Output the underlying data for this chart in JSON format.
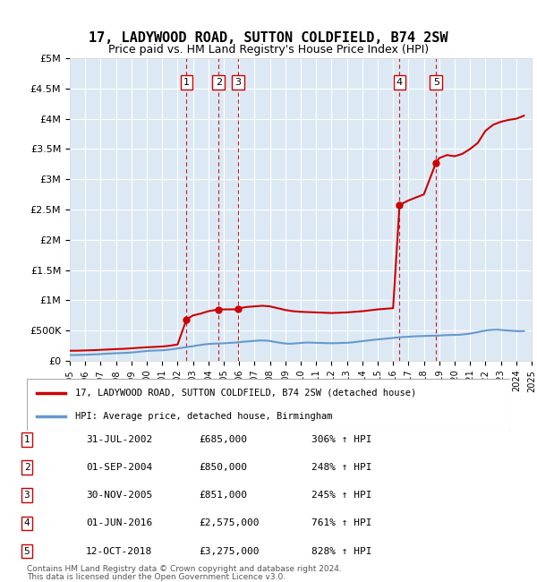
{
  "title": "17, LADYWOOD ROAD, SUTTON COLDFIELD, B74 2SW",
  "subtitle": "Price paid vs. HM Land Registry's House Price Index (HPI)",
  "hpi_line_color": "#6699cc",
  "price_line_color": "#cc0000",
  "background_color": "#dce9f5",
  "plot_bg_color": "#dce9f5",
  "sales": [
    {
      "label": "1",
      "date": 2002.58,
      "price": 685000,
      "date_str": "31-JUL-2002",
      "pct": "306%"
    },
    {
      "label": "2",
      "date": 2004.67,
      "price": 850000,
      "date_str": "01-SEP-2004",
      "pct": "248%"
    },
    {
      "label": "3",
      "date": 2005.92,
      "price": 851000,
      "date_str": "30-NOV-2005",
      "pct": "245%"
    },
    {
      "label": "4",
      "date": 2016.42,
      "price": 2575000,
      "date_str": "01-JUN-2016",
      "pct": "761%"
    },
    {
      "label": "5",
      "date": 2018.79,
      "price": 3275000,
      "date_str": "12-OCT-2018",
      "pct": "828%"
    }
  ],
  "hpi_data_x": [
    1995,
    1995.25,
    1995.5,
    1995.75,
    1996,
    1996.25,
    1996.5,
    1996.75,
    1997,
    1997.25,
    1997.5,
    1997.75,
    1998,
    1998.25,
    1998.5,
    1998.75,
    1999,
    1999.25,
    1999.5,
    1999.75,
    2000,
    2000.25,
    2000.5,
    2000.75,
    2001,
    2001.25,
    2001.5,
    2001.75,
    2002,
    2002.25,
    2002.5,
    2002.75,
    2003,
    2003.25,
    2003.5,
    2003.75,
    2004,
    2004.25,
    2004.5,
    2004.75,
    2005,
    2005.25,
    2005.5,
    2005.75,
    2006,
    2006.25,
    2006.5,
    2006.75,
    2007,
    2007.25,
    2007.5,
    2007.75,
    2008,
    2008.25,
    2008.5,
    2008.75,
    2009,
    2009.25,
    2009.5,
    2009.75,
    2010,
    2010.25,
    2010.5,
    2010.75,
    2011,
    2011.25,
    2011.5,
    2011.75,
    2012,
    2012.25,
    2012.5,
    2012.75,
    2013,
    2013.25,
    2013.5,
    2013.75,
    2014,
    2014.25,
    2014.5,
    2014.75,
    2015,
    2015.25,
    2015.5,
    2015.75,
    2016,
    2016.25,
    2016.5,
    2016.75,
    2017,
    2017.25,
    2017.5,
    2017.75,
    2018,
    2018.25,
    2018.5,
    2018.75,
    2019,
    2019.25,
    2019.5,
    2019.75,
    2020,
    2020.25,
    2020.5,
    2020.75,
    2021,
    2021.25,
    2021.5,
    2021.75,
    2022,
    2022.25,
    2022.5,
    2022.75,
    2023,
    2023.25,
    2023.5,
    2023.75,
    2024,
    2024.25,
    2024.5
  ],
  "hpi_data_y": [
    95000,
    96000,
    97000,
    98000,
    100000,
    103000,
    106000,
    108000,
    112000,
    116000,
    120000,
    123000,
    126000,
    128000,
    131000,
    133000,
    138000,
    143000,
    150000,
    157000,
    163000,
    167000,
    170000,
    172000,
    175000,
    180000,
    187000,
    196000,
    205000,
    215000,
    224000,
    233000,
    242000,
    253000,
    263000,
    272000,
    278000,
    282000,
    285000,
    287000,
    290000,
    294000,
    298000,
    302000,
    308000,
    315000,
    320000,
    325000,
    330000,
    335000,
    337000,
    334000,
    328000,
    316000,
    305000,
    295000,
    287000,
    283000,
    285000,
    290000,
    296000,
    300000,
    302000,
    300000,
    298000,
    296000,
    294000,
    292000,
    291000,
    292000,
    294000,
    296000,
    298000,
    303000,
    310000,
    318000,
    326000,
    333000,
    340000,
    347000,
    354000,
    360000,
    366000,
    372000,
    378000,
    385000,
    391000,
    395000,
    399000,
    403000,
    406000,
    408000,
    410000,
    413000,
    415000,
    416000,
    418000,
    422000,
    425000,
    427000,
    428000,
    430000,
    435000,
    442000,
    450000,
    462000,
    475000,
    488000,
    500000,
    508000,
    512000,
    515000,
    510000,
    505000,
    500000,
    496000,
    492000,
    490000,
    492000
  ],
  "price_line_x": [
    1995,
    1995.5,
    1996,
    1996.5,
    1997,
    1997.5,
    1998,
    1998.5,
    1999,
    1999.5,
    2000,
    2000.5,
    2001,
    2001.5,
    2002,
    2002.58,
    2003,
    2003.5,
    2004,
    2004.67,
    2005,
    2005.92,
    2006,
    2006.5,
    2007,
    2007.5,
    2008,
    2008.5,
    2009,
    2009.5,
    2010,
    2010.5,
    2011,
    2011.5,
    2012,
    2012.5,
    2013,
    2013.5,
    2014,
    2014.5,
    2015,
    2015.5,
    2016,
    2016.42,
    2017,
    2017.5,
    2018,
    2018.79,
    2019,
    2019.5,
    2020,
    2020.5,
    2021,
    2021.5,
    2022,
    2022.5,
    2023,
    2023.5,
    2024,
    2024.5
  ],
  "price_line_y": [
    167000,
    168000,
    172000,
    176000,
    182000,
    188000,
    194000,
    199000,
    207000,
    216000,
    224000,
    230000,
    237000,
    250000,
    270000,
    685000,
    750000,
    780000,
    820000,
    850000,
    850000,
    851000,
    870000,
    890000,
    900000,
    910000,
    900000,
    870000,
    840000,
    820000,
    810000,
    805000,
    800000,
    795000,
    790000,
    795000,
    800000,
    810000,
    820000,
    835000,
    850000,
    860000,
    870000,
    2575000,
    2650000,
    2700000,
    2750000,
    3275000,
    3350000,
    3400000,
    3380000,
    3420000,
    3500000,
    3600000,
    3800000,
    3900000,
    3950000,
    3980000,
    4000000,
    4050000
  ],
  "ylim": [
    0,
    5000000
  ],
  "xlim": [
    1995,
    2025
  ],
  "yticks": [
    0,
    500000,
    1000000,
    1500000,
    2000000,
    2500000,
    3000000,
    3500000,
    4000000,
    4500000,
    5000000
  ],
  "ytick_labels": [
    "£0",
    "£500K",
    "£1M",
    "£1.5M",
    "£2M",
    "£2.5M",
    "£3M",
    "£3.5M",
    "£4M",
    "£4.5M",
    "£5M"
  ],
  "xticks": [
    1995,
    1996,
    1997,
    1998,
    1999,
    2000,
    2001,
    2002,
    2003,
    2004,
    2005,
    2006,
    2007,
    2008,
    2009,
    2010,
    2011,
    2012,
    2013,
    2014,
    2015,
    2016,
    2017,
    2018,
    2019,
    2020,
    2021,
    2022,
    2023,
    2024,
    2025
  ],
  "legend_label_red": "17, LADYWOOD ROAD, SUTTON COLDFIELD, B74 2SW (detached house)",
  "legend_label_blue": "HPI: Average price, detached house, Birmingham",
  "footer_line1": "Contains HM Land Registry data © Crown copyright and database right 2024.",
  "footer_line2": "This data is licensed under the Open Government Licence v3.0."
}
